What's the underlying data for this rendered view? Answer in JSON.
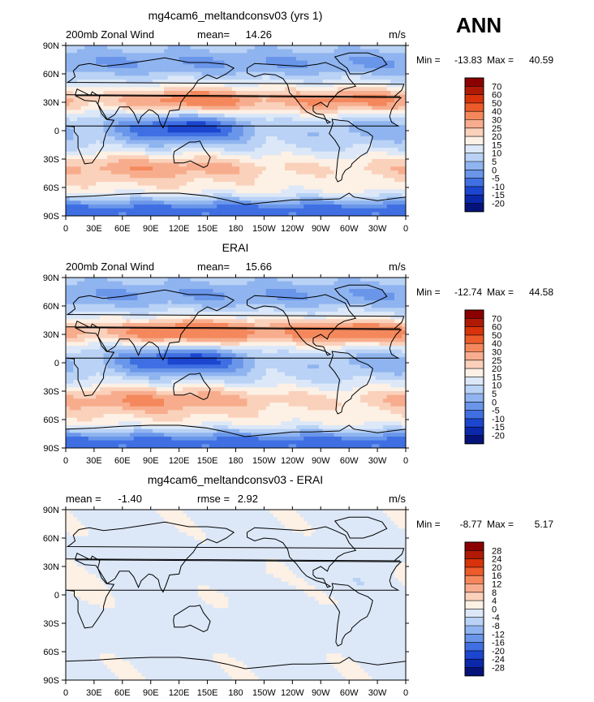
{
  "season": "ANN",
  "chart_data": [
    {
      "type": "heatmap",
      "title": "mg4cam6_meltandconsv03 (yrs 1)",
      "left_label": "200mb Zonal Wind",
      "stat_label": "mean=",
      "stat_value": "14.26",
      "units": "m/s",
      "min_label": "Min =",
      "min_value": "-13.83",
      "max_label": "Max =",
      "max_value": "40.59",
      "x_ticks": [
        "0",
        "30E",
        "60E",
        "90E",
        "120E",
        "150E",
        "180",
        "150W",
        "120W",
        "90W",
        "60W",
        "30W",
        "0"
      ],
      "y_ticks": [
        "90N",
        "60N",
        "30N",
        "0",
        "30S",
        "60S",
        "90S"
      ],
      "colorbar": {
        "levels": [
          "70",
          "60",
          "50",
          "40",
          "30",
          "25",
          "20",
          "15",
          "10",
          "5",
          "0",
          "-5",
          "-10",
          "-15",
          "-20"
        ],
        "colors": [
          "#8b0000",
          "#b01a05",
          "#d8330b",
          "#ec5b2a",
          "#f4885c",
          "#f7ad8d",
          "#fad1bb",
          "#fdf0e4",
          "#dce8f8",
          "#b9d2f5",
          "#8fb4ef",
          "#6a96ea",
          "#3f6fe2",
          "#1c46d0",
          "#0b28aa",
          "#05127a"
        ]
      }
    },
    {
      "type": "heatmap",
      "title": "ERAI",
      "left_label": "200mb Zonal Wind",
      "stat_label": "mean=",
      "stat_value": "15.66",
      "units": "m/s",
      "min_label": "Min =",
      "min_value": "-12.74",
      "max_label": "Max =",
      "max_value": "44.58",
      "x_ticks": [
        "0",
        "30E",
        "60E",
        "90E",
        "120E",
        "150E",
        "180",
        "150W",
        "120W",
        "90W",
        "60W",
        "30W",
        "0"
      ],
      "y_ticks": [
        "90N",
        "60N",
        "30N",
        "0",
        "30S",
        "60S",
        "90S"
      ],
      "colorbar": {
        "levels": [
          "70",
          "60",
          "50",
          "40",
          "30",
          "25",
          "20",
          "15",
          "10",
          "5",
          "0",
          "-5",
          "-10",
          "-15",
          "-20"
        ],
        "colors": [
          "#8b0000",
          "#b01a05",
          "#d8330b",
          "#ec5b2a",
          "#f4885c",
          "#f7ad8d",
          "#fad1bb",
          "#fdf0e4",
          "#dce8f8",
          "#b9d2f5",
          "#8fb4ef",
          "#6a96ea",
          "#3f6fe2",
          "#1c46d0",
          "#0b28aa",
          "#05127a"
        ]
      }
    },
    {
      "type": "heatmap",
      "title": "mg4cam6_meltandconsv03 - ERAI",
      "left_label": "",
      "stat_label": "mean =",
      "stat_value": "-1.40",
      "stat2_label": "rmse =",
      "stat2_value": "2.92",
      "units": "m/s",
      "min_label": "Min =",
      "min_value": "-8.77",
      "max_label": "Max =",
      "max_value": "5.17",
      "x_ticks": [
        "0",
        "30E",
        "60E",
        "90E",
        "120E",
        "150E",
        "180",
        "150W",
        "120W",
        "90W",
        "60W",
        "30W",
        "0"
      ],
      "y_ticks": [
        "90N",
        "60N",
        "30N",
        "0",
        "30S",
        "60S",
        "90S"
      ],
      "colorbar": {
        "levels": [
          "28",
          "24",
          "20",
          "16",
          "12",
          "8",
          "4",
          "0",
          "-4",
          "-8",
          "-12",
          "-16",
          "-20",
          "-24",
          "-28"
        ],
        "colors": [
          "#8b0000",
          "#b01a05",
          "#d8330b",
          "#ec5b2a",
          "#f4885c",
          "#f7ad8d",
          "#fad1bb",
          "#fdf0e4",
          "#dce8f8",
          "#b9d2f5",
          "#8fb4ef",
          "#6a96ea",
          "#3f6fe2",
          "#1c46d0",
          "#0b28aa",
          "#05127a"
        ]
      }
    }
  ]
}
